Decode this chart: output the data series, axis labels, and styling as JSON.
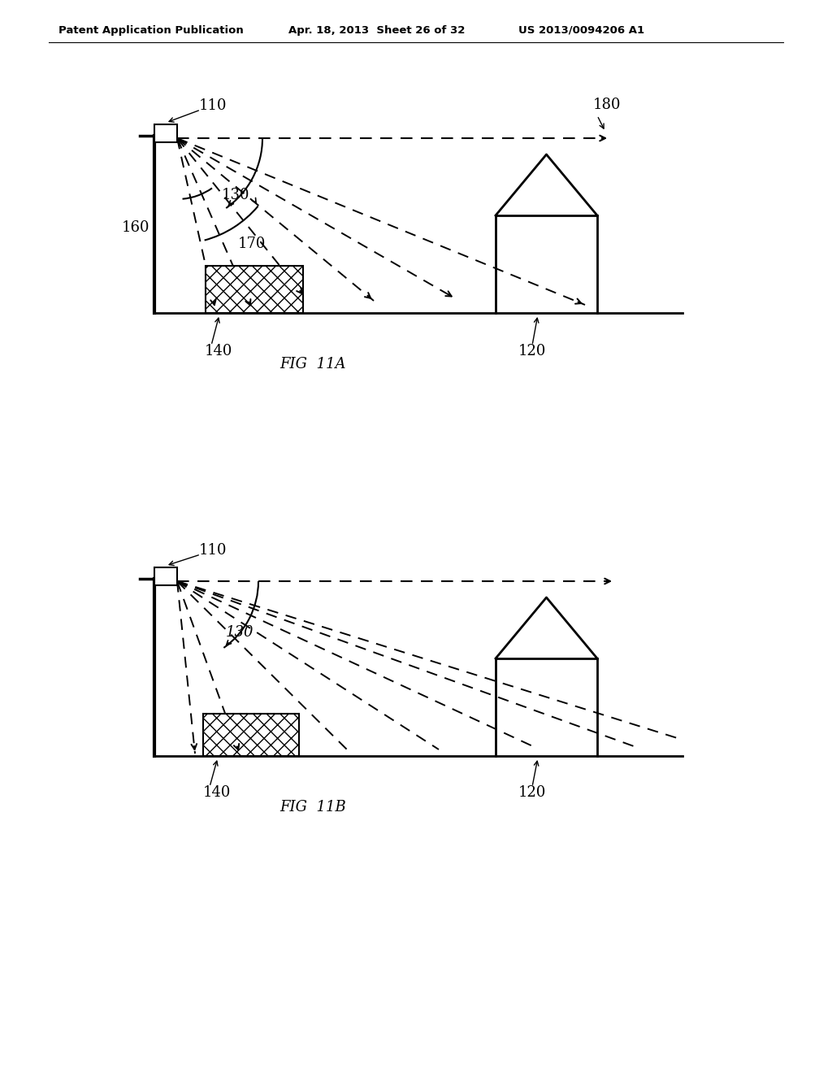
{
  "header_left": "Patent Application Publication",
  "header_mid": "Apr. 18, 2013  Sheet 26 of 32",
  "header_right": "US 2013/0094206 A1",
  "fig_label_a": "FIG  11A",
  "fig_label_b": "FIG  11B",
  "background": "#ffffff",
  "line_color": "#000000"
}
